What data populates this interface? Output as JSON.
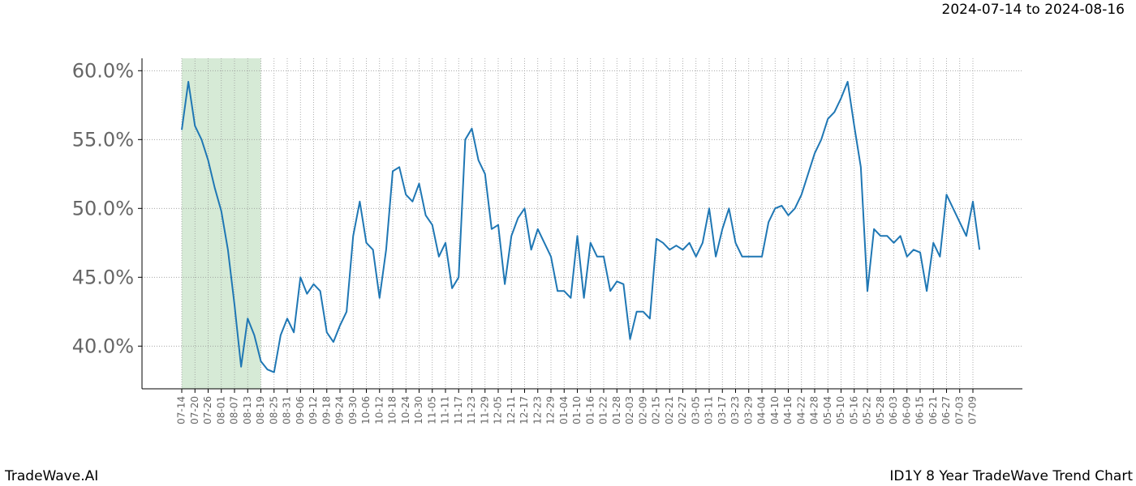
{
  "chart_data": {
    "type": "line",
    "subtitle": "2024-07-14 to 2024-08-16",
    "footer_left": "TradeWave.AI",
    "footer_right": "ID1Y 8 Year TradeWave Trend Chart",
    "highlight": [
      "07-14",
      "08-16"
    ],
    "highlight_color": "#d6ead6",
    "categories": [
      "07-14",
      null,
      "07-20",
      null,
      "07-26",
      null,
      "08-01",
      null,
      "08-07",
      null,
      "08-13",
      null,
      "08-19",
      null,
      "08-25",
      null,
      "08-31",
      null,
      "09-06",
      null,
      "09-12",
      null,
      "09-18",
      null,
      "09-24",
      null,
      "09-30",
      null,
      "10-06",
      null,
      "10-12",
      null,
      "10-18",
      null,
      "10-24",
      null,
      "10-30",
      null,
      "11-05",
      null,
      "11-11",
      null,
      "11-17",
      null,
      "11-23",
      null,
      "11-29",
      null,
      "12-05",
      null,
      "12-11",
      null,
      "12-17",
      null,
      "12-23",
      null,
      "12-29",
      null,
      "01-04",
      null,
      "01-10",
      null,
      "01-16",
      null,
      "01-22",
      null,
      "01-28",
      null,
      "02-03",
      null,
      "02-09",
      null,
      "02-15",
      null,
      "02-21",
      null,
      "02-27",
      null,
      "03-05",
      null,
      "03-11",
      null,
      "03-17",
      null,
      "03-23",
      null,
      "03-29",
      null,
      "04-04",
      null,
      "04-10",
      null,
      "04-16",
      null,
      "04-22",
      null,
      "04-28",
      null,
      "05-04",
      null,
      "05-10",
      null,
      "05-16",
      null,
      "05-22",
      null,
      "05-28",
      null,
      "06-03",
      null,
      "06-09",
      null,
      "06-15",
      null,
      "06-21",
      null,
      "06-27",
      null,
      "07-03",
      null,
      "07-09",
      null
    ],
    "series": [
      {
        "color": "#1f77b4",
        "values": [
          55.7,
          59.2,
          56,
          55,
          53.5,
          51.5,
          49.8,
          47,
          43,
          38.5,
          42,
          40.8,
          38.9,
          38.3,
          38.1,
          40.8,
          42,
          41,
          45,
          43.8,
          44.5,
          44,
          41,
          40.3,
          41.5,
          42.5,
          48,
          50.5,
          47.5,
          47,
          43.5,
          47,
          52.7,
          53,
          51,
          50.5,
          51.8,
          49.5,
          48.8,
          46.5,
          47.5,
          44.2,
          45,
          55,
          55.8,
          53.5,
          52.5,
          48.5,
          48.8,
          44.5,
          48,
          49.3,
          50,
          47,
          48.5,
          47.5,
          46.5,
          44,
          44,
          43.5,
          48,
          43.5,
          47.5,
          46.5,
          46.5,
          44,
          44.7,
          44.5,
          40.5,
          42.5,
          42.5,
          42,
          47.8,
          47.5,
          47,
          47.3,
          47,
          47.5,
          46.5,
          47.5,
          50,
          46.5,
          48.5,
          50,
          47.5,
          46.5,
          46.5,
          46.5,
          46.5,
          49,
          50,
          50.2,
          49.5,
          50,
          51,
          52.5,
          54,
          55,
          56.5,
          57,
          58,
          59.2,
          56,
          53,
          44,
          48.5,
          48,
          48,
          47.5,
          48,
          46.5,
          47,
          46.8,
          44,
          47.5,
          46.5,
          51,
          50,
          49,
          48,
          50.5,
          47
        ]
      }
    ],
    "ylim": [
      36.9,
      60.9
    ],
    "yticks": [
      {
        "value": 40,
        "label": "40.0%"
      },
      {
        "value": 45,
        "label": "45.0%"
      },
      {
        "value": 50,
        "label": "50.0%"
      },
      {
        "value": 55,
        "label": "55.0%"
      },
      {
        "value": 60,
        "label": "60.0%"
      }
    ],
    "grid": true
  }
}
